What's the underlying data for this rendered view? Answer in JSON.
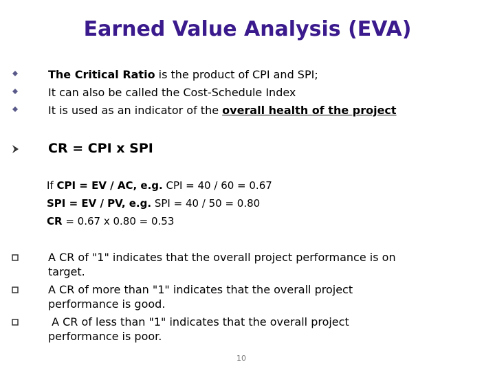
{
  "title": "Earned Value Analysis (EVA)",
  "bullets": [
    [
      "The Critical Ratio",
      " is the product of CPI and SPI;"
    ],
    [
      "It can also be called the Cost-Schedule Index"
    ],
    [
      "It is used as an indicator of the ",
      "overall health of the project"
    ]
  ],
  "formula": "CR = CPI x SPI",
  "examples": [
    [
      "If ",
      "CPI = EV / AC, e.g.",
      " CPI = 40 / 60 = 0.67"
    ],
    [
      "SPI = EV / PV, e.g.",
      " SPI = 40 / 50 = 0.80"
    ],
    [
      "CR",
      " = 0.67 x 0.80 = 0.53"
    ]
  ],
  "notes": [
    [
      "A CR of \"1\" indicates that the overall project performance is on",
      "target."
    ],
    [
      "A CR of more than \"1\" indicates that the overall project",
      "performance is good."
    ],
    [
      " A CR of less than \"1\" indicates that the overall project",
      "performance is poor."
    ]
  ],
  "page_number": "10"
}
